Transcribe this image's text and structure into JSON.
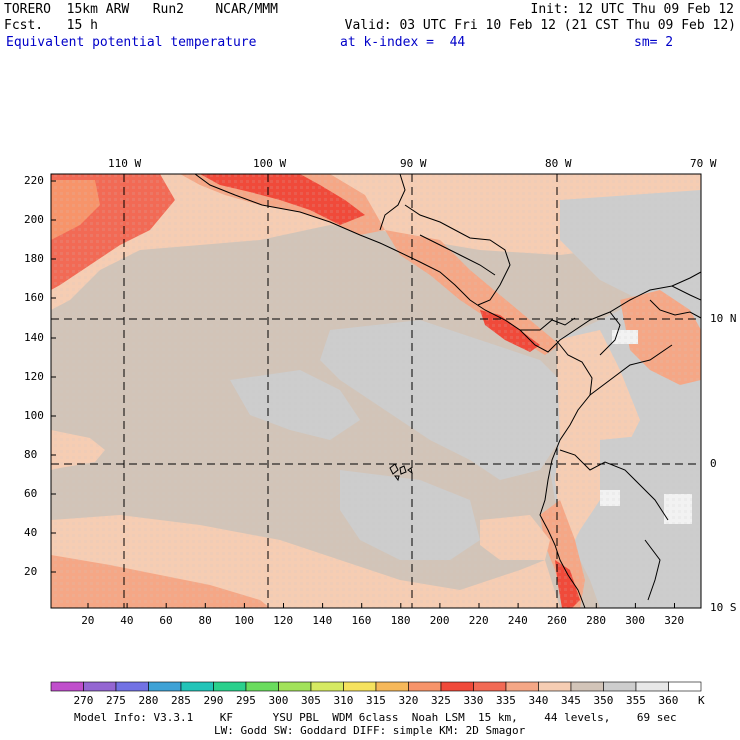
{
  "header": {
    "line1_left": "TORERO  15km ARW   Run2    NCAR/MMM",
    "line1_right": "Init: 12 UTC Thu 09 Feb 12",
    "line2_left": "Fcst.   15 h",
    "line2_right": "Valid: 03 UTC Fri 10 Feb 12 (21 CST Thu 09 Feb 12)",
    "line3_field": "Equivalent potential temperature",
    "line3_level": "at k-index =  44",
    "line3_sm": "sm= 2"
  },
  "map": {
    "top_lon_labels": [
      "110 W",
      "100 W",
      "90 W",
      "80 W",
      "70 W"
    ],
    "right_lat_labels": [
      "10 N",
      "0",
      "10 S"
    ],
    "left_y_ticks": [
      "220",
      "200",
      "180",
      "160",
      "140",
      "120",
      "100",
      "80",
      "60",
      "40",
      "20"
    ],
    "bottom_x_ticks": [
      "20",
      "40",
      "60",
      "80",
      "100",
      "120",
      "140",
      "160",
      "180",
      "200",
      "220",
      "240",
      "260",
      "280",
      "300",
      "320"
    ],
    "colors": {
      "background_field": "#d2c4b8",
      "gray_zone": "#cdcdcd",
      "light_salmon": "#f6cdb3",
      "salmon": "#f5a786",
      "red": "#f26a55",
      "deep_red": "#f04a3a",
      "orange": "#f7946a",
      "white": "#f2f2f2",
      "coast": "#000000"
    }
  },
  "colorbar": {
    "labels": [
      "270",
      "275",
      "280",
      "285",
      "290",
      "295",
      "300",
      "305",
      "310",
      "315",
      "320",
      "325",
      "330",
      "335",
      "340",
      "345",
      "350",
      "355",
      "360"
    ],
    "unit": "K",
    "colors": [
      "#c04ecc",
      "#9466d2",
      "#7272e4",
      "#3fa2d6",
      "#22c4b8",
      "#2ad08c",
      "#6adc5e",
      "#a2e25a",
      "#d6ea62",
      "#f6e25e",
      "#f6b85a",
      "#f7946a",
      "#f04a3a",
      "#f26a55",
      "#f5a786",
      "#f6cdb3",
      "#d2c4b8",
      "#cdcdcd",
      "#e8e8e8",
      "#ffffff"
    ]
  },
  "footer": {
    "line1": "Model Info: V3.3.1    KF      YSU PBL  WDM 6class  Noah LSM  15 km,    44 levels,    69 sec",
    "line2": "LW: Godd SW: Goddard DIFF: simple KM: 2D Smagor"
  }
}
